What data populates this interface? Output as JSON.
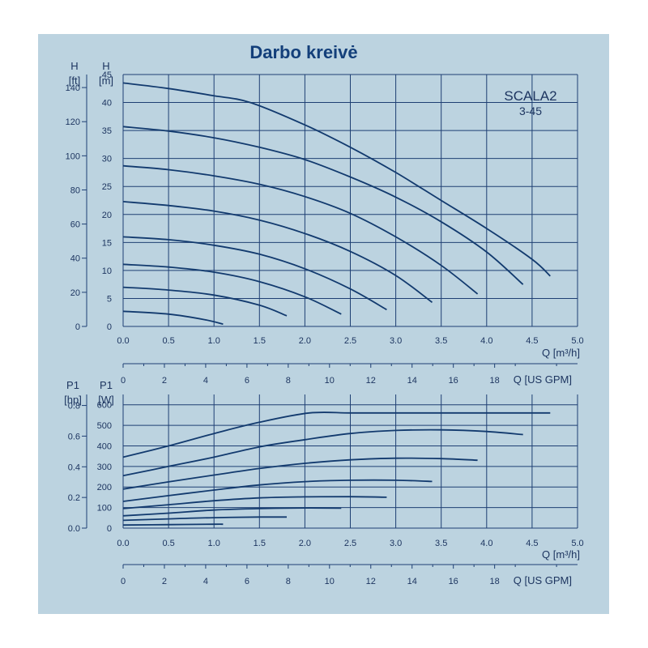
{
  "title": "Darbo kreivė",
  "model": {
    "name": "SCALA2",
    "variant": "3-45"
  },
  "colors": {
    "panel": "#bcd3e0",
    "grid": "#1e3f73",
    "curve": "#123a6e",
    "text": "#1d3560",
    "title": "#133f7a"
  },
  "chart_data": [
    {
      "type": "line",
      "name": "head",
      "xlabel": "Q [m³/h]",
      "xlim": [
        0,
        5
      ],
      "x_ticks": [
        "0.0",
        "0.5",
        "1.0",
        "1.5",
        "2.0",
        "2.5",
        "3.0",
        "3.5",
        "4.0",
        "4.5",
        "5.0"
      ],
      "y_left_label_top": "H",
      "y_left_label_unit": "[ft]",
      "y_left_ticks": [
        "0",
        "20",
        "40",
        "60",
        "80",
        "100",
        "120",
        "140"
      ],
      "y_right_label_top": "H",
      "y_right_label_unit": "[m]",
      "ylim": [
        0,
        45
      ],
      "y_ticks": [
        "0",
        "5",
        "10",
        "15",
        "20",
        "25",
        "30",
        "35",
        "40",
        "45"
      ],
      "secondary_x_label": "Q [US GPM]",
      "secondary_x_ticks": [
        "0",
        "2",
        "4",
        "6",
        "8",
        "10",
        "12",
        "14",
        "16",
        "18"
      ],
      "grid": true,
      "series": [
        {
          "x": [
            0,
            0.5,
            1.0,
            1.4,
            2.0,
            2.5,
            3.0,
            3.5,
            4.0,
            4.5,
            4.7
          ],
          "y": [
            43.5,
            42.5,
            41.2,
            40.0,
            36.0,
            32.0,
            27.5,
            22.5,
            17.5,
            12.0,
            9.0
          ]
        },
        {
          "x": [
            0,
            0.5,
            1.0,
            1.5,
            2.0,
            2.5,
            3.0,
            3.5,
            4.0,
            4.4
          ],
          "y": [
            35.7,
            34.9,
            33.7,
            32.0,
            29.8,
            26.7,
            23.1,
            18.7,
            13.3,
            7.5
          ]
        },
        {
          "x": [
            0,
            0.5,
            1.0,
            1.5,
            2.0,
            2.5,
            3.0,
            3.5,
            3.9
          ],
          "y": [
            28.7,
            28.0,
            26.9,
            25.4,
            23.2,
            20.2,
            16.0,
            10.9,
            5.8
          ]
        },
        {
          "x": [
            0,
            0.5,
            1.0,
            1.5,
            2.0,
            2.5,
            3.0,
            3.4
          ],
          "y": [
            22.3,
            21.6,
            20.6,
            19.0,
            16.6,
            13.4,
            9.1,
            4.3
          ]
        },
        {
          "x": [
            0,
            0.5,
            1.0,
            1.5,
            2.0,
            2.5,
            2.9
          ],
          "y": [
            16.0,
            15.5,
            14.5,
            12.9,
            10.3,
            6.7,
            3.0
          ]
        },
        {
          "x": [
            0,
            0.5,
            1.0,
            1.5,
            2.0,
            2.4
          ],
          "y": [
            11.1,
            10.6,
            9.7,
            8.0,
            5.3,
            2.2
          ]
        },
        {
          "x": [
            0,
            0.5,
            1.0,
            1.5,
            1.8
          ],
          "y": [
            7.0,
            6.5,
            5.6,
            3.8,
            1.9
          ]
        },
        {
          "x": [
            0,
            0.5,
            0.9,
            1.1
          ],
          "y": [
            2.7,
            2.2,
            1.2,
            0.4
          ]
        }
      ]
    },
    {
      "type": "line",
      "name": "power",
      "xlabel": "Q [m³/h]",
      "xlim": [
        0,
        5
      ],
      "x_ticks": [
        "0.0",
        "0.5",
        "1.0",
        "1.5",
        "2.0",
        "2.5",
        "3.0",
        "3.5",
        "4.0",
        "4.5",
        "5.0"
      ],
      "y_left_label_top": "P1",
      "y_left_label_unit": "[hp]",
      "y_left_ticks": [
        "0.0",
        "0.2",
        "0.4",
        "0.6",
        "0.8"
      ],
      "y_right_label_top": "P1",
      "y_right_label_unit": "[W]",
      "ylim": [
        0,
        650
      ],
      "y_ticks": [
        "0",
        "100",
        "200",
        "300",
        "400",
        "500",
        "600"
      ],
      "secondary_x_label": "Q [US GPM]",
      "secondary_x_ticks": [
        "0",
        "2",
        "4",
        "6",
        "8",
        "10",
        "12",
        "14",
        "16",
        "18"
      ],
      "grid": true,
      "series": [
        {
          "x": [
            0,
            0.5,
            1.0,
            1.5,
            2.05,
            2.5,
            3.0,
            4.0,
            4.7
          ],
          "y": [
            345,
            400,
            460,
            515,
            560,
            560,
            560,
            560,
            560
          ]
        },
        {
          "x": [
            0,
            0.5,
            1.0,
            1.5,
            2.0,
            2.5,
            3.0,
            3.5,
            4.0,
            4.4
          ],
          "y": [
            255,
            300,
            345,
            395,
            430,
            460,
            475,
            478,
            470,
            455
          ]
        },
        {
          "x": [
            0,
            0.5,
            1.0,
            1.5,
            2.0,
            2.5,
            3.0,
            3.5,
            3.9
          ],
          "y": [
            190,
            225,
            258,
            290,
            315,
            332,
            340,
            338,
            330
          ]
        },
        {
          "x": [
            0,
            0.5,
            1.0,
            1.5,
            2.0,
            2.5,
            3.0,
            3.4
          ],
          "y": [
            130,
            158,
            185,
            210,
            226,
            233,
            233,
            227
          ]
        },
        {
          "x": [
            0,
            0.5,
            1.0,
            1.5,
            2.0,
            2.5,
            2.9
          ],
          "y": [
            95,
            114,
            133,
            147,
            152,
            153,
            150
          ]
        },
        {
          "x": [
            0,
            0.5,
            1.0,
            1.5,
            2.0,
            2.4
          ],
          "y": [
            60,
            73,
            88,
            95,
            98,
            97
          ]
        },
        {
          "x": [
            0,
            0.5,
            1.0,
            1.5,
            1.8
          ],
          "y": [
            38,
            45,
            51,
            54,
            54
          ]
        },
        {
          "x": [
            0,
            0.5,
            1.0,
            1.1
          ],
          "y": [
            15,
            17,
            19,
            19
          ]
        }
      ]
    }
  ]
}
